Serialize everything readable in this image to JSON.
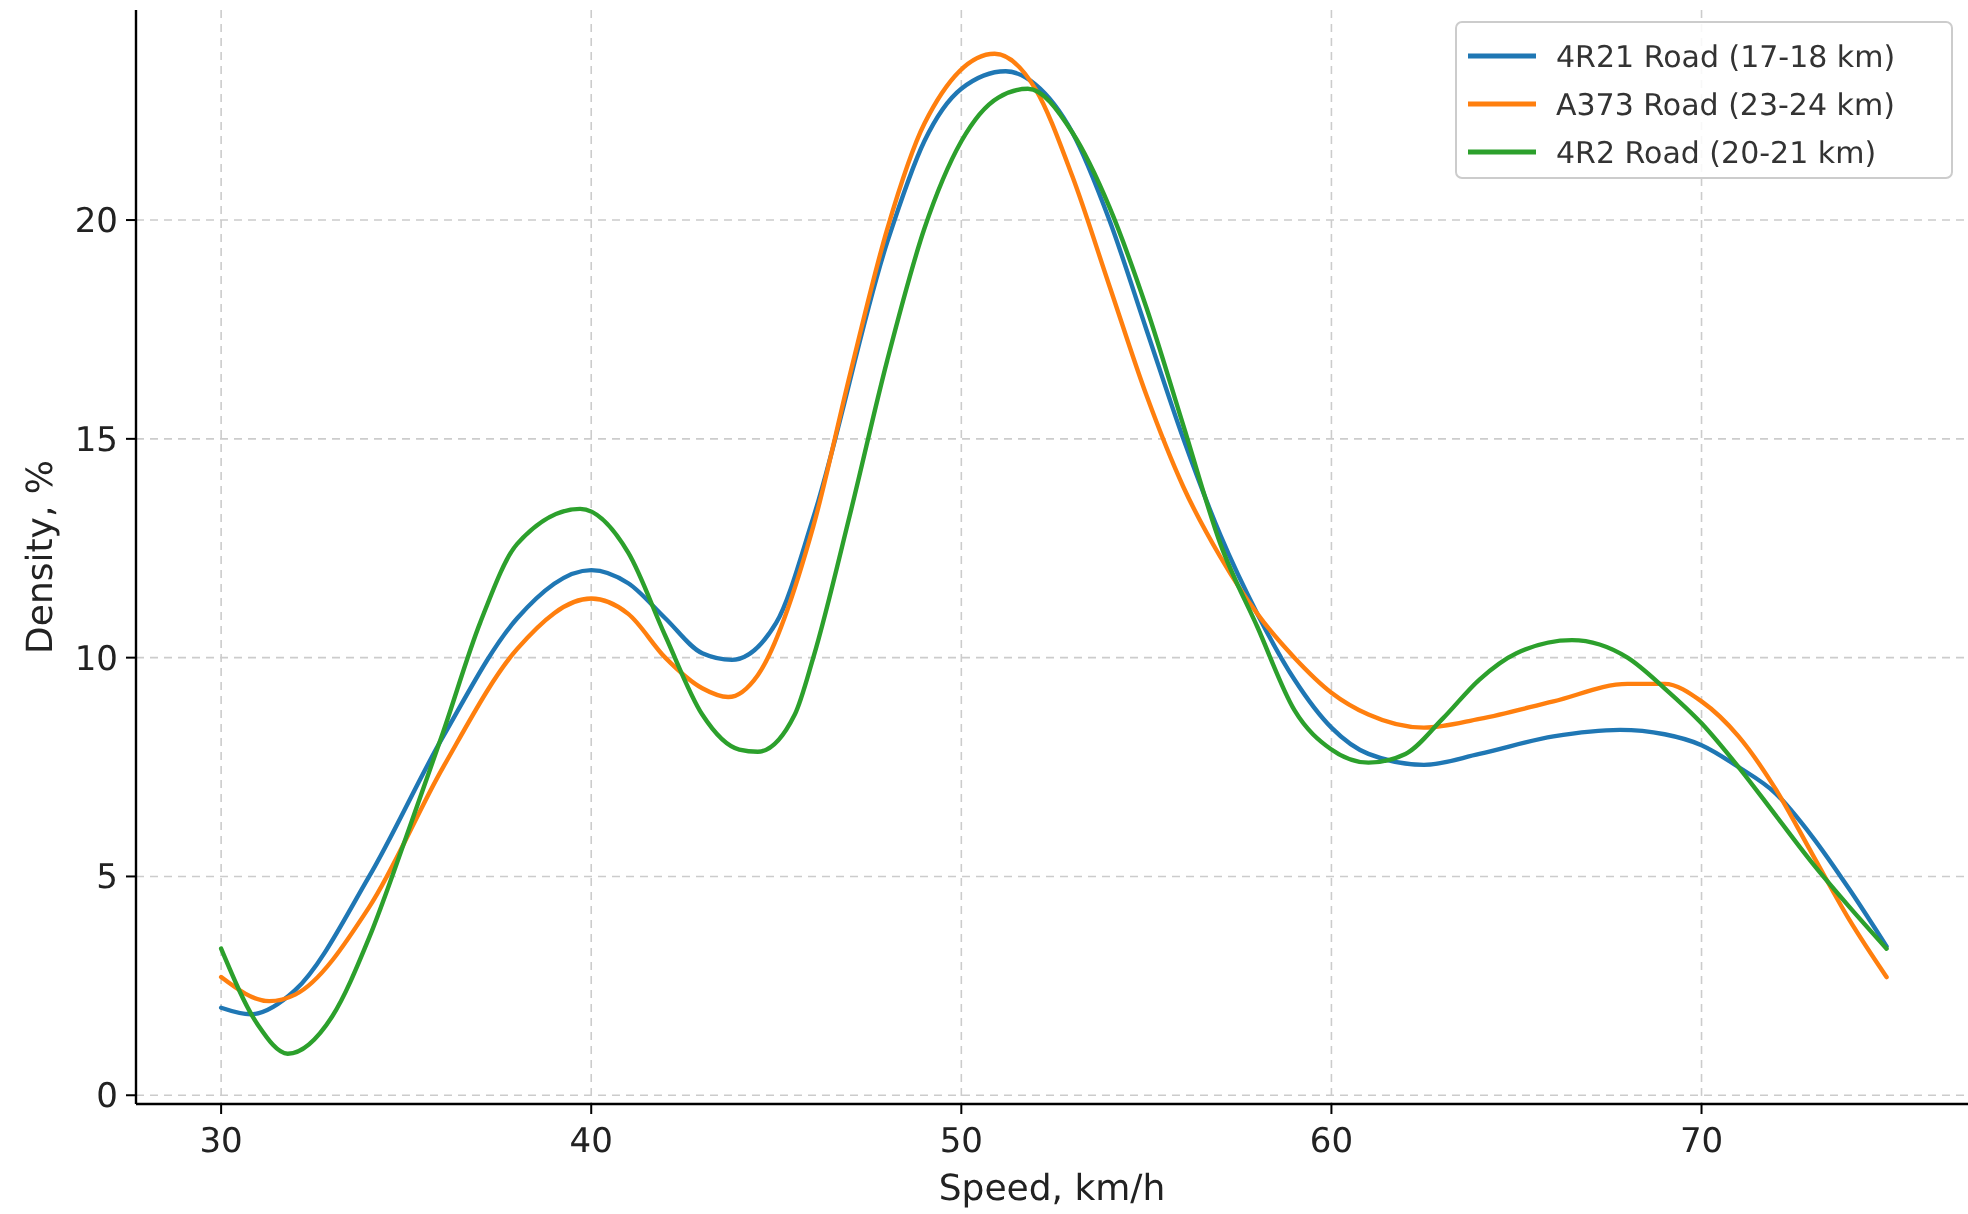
{
  "chart_data": {
    "type": "line",
    "xlabel": "Speed, km/h",
    "ylabel": "Density, %",
    "xlim": [
      27.7,
      77.2
    ],
    "ylim": [
      -0.2,
      24.8
    ],
    "xticks": [
      30,
      40,
      50,
      60,
      70
    ],
    "yticks": [
      0,
      5,
      10,
      15,
      20
    ],
    "grid": true,
    "legend": "top right",
    "line_style": "solid",
    "series": [
      {
        "name": "4R21 Road (17-18 km)",
        "color": "#1f77b4",
        "x": [
          30,
          30.8,
          32,
          34,
          36,
          38,
          40,
          41,
          42,
          43,
          43.8,
          45,
          46,
          48,
          49,
          50,
          51.2,
          52,
          53,
          54,
          55,
          56,
          57,
          58,
          59,
          60,
          61,
          62.5,
          64,
          66,
          67.8,
          69,
          70,
          71,
          72,
          73,
          74,
          75
        ],
        "values": [
          2.0,
          1.85,
          2.4,
          5.0,
          8.2,
          10.9,
          12.0,
          11.7,
          10.9,
          10.1,
          9.95,
          10.8,
          13.2,
          19.5,
          21.8,
          23.0,
          23.4,
          23.1,
          22.0,
          20.0,
          17.5,
          15.0,
          12.8,
          11.0,
          9.5,
          8.4,
          7.8,
          7.55,
          7.8,
          8.2,
          8.35,
          8.25,
          8.0,
          7.5,
          6.9,
          5.9,
          4.7,
          3.4
        ]
      },
      {
        "name": "A373 Road (23-24 km)",
        "color": "#ff7f0e",
        "x": [
          30,
          31.3,
          32,
          34,
          36,
          38,
          40,
          41,
          42,
          43,
          43.7,
          44.5,
          46,
          47,
          48,
          49,
          50.9,
          52,
          53,
          54,
          55,
          56,
          57,
          58,
          59,
          60,
          61,
          62.5,
          64,
          66,
          68,
          69,
          70,
          71,
          72,
          73,
          74,
          75
        ],
        "values": [
          2.7,
          2.15,
          2.3,
          4.3,
          7.5,
          10.2,
          11.35,
          11.0,
          10.0,
          9.3,
          9.1,
          9.6,
          13.0,
          16.5,
          19.8,
          22.2,
          23.8,
          23.0,
          21.0,
          18.5,
          16.0,
          13.9,
          12.3,
          11.0,
          10.0,
          9.2,
          8.7,
          8.4,
          8.6,
          9.0,
          9.4,
          9.4,
          9.0,
          8.2,
          7.0,
          5.5,
          4.0,
          2.7
        ]
      },
      {
        "name": "4R2 Road (20-21 km)",
        "color": "#2ca02c",
        "x": [
          30,
          31,
          31.8,
          33,
          34,
          35,
          36,
          37,
          38,
          39.7,
          41,
          42,
          43,
          44,
          44.5,
          45.5,
          46,
          47,
          48,
          49,
          50,
          51,
          51.8,
          53,
          54,
          55,
          56,
          57,
          58,
          59,
          60,
          61,
          62,
          63,
          64,
          65,
          66.5,
          68,
          69,
          70,
          71,
          72,
          73,
          74,
          75
        ],
        "values": [
          3.35,
          1.6,
          0.95,
          1.8,
          3.6,
          5.9,
          8.3,
          10.8,
          12.6,
          13.4,
          12.4,
          10.5,
          8.7,
          7.9,
          7.85,
          8.7,
          10.0,
          13.3,
          16.8,
          19.8,
          21.8,
          22.8,
          23.0,
          22.0,
          20.3,
          18.0,
          15.3,
          12.6,
          10.7,
          8.8,
          7.9,
          7.6,
          7.8,
          8.6,
          9.5,
          10.1,
          10.4,
          10.0,
          9.3,
          8.5,
          7.5,
          6.4,
          5.3,
          4.3,
          3.35
        ]
      }
    ]
  }
}
